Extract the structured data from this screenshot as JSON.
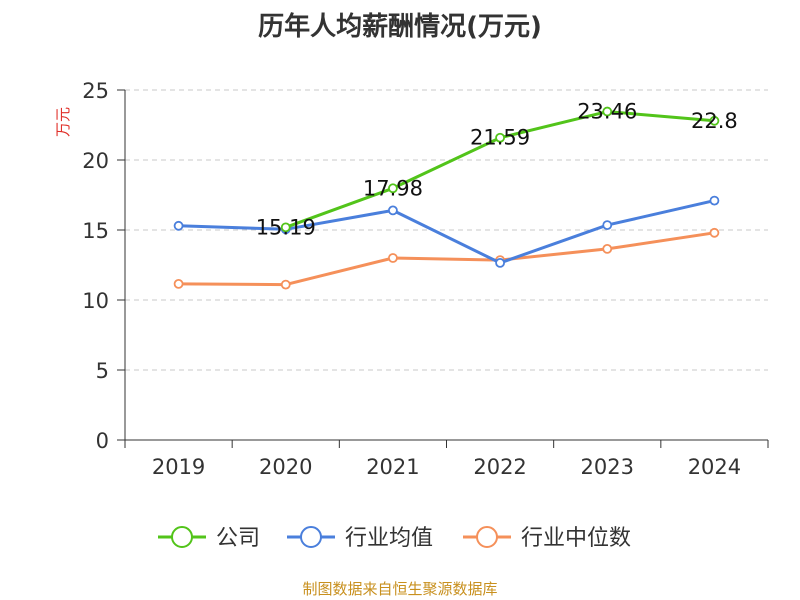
{
  "chart_data": {
    "type": "line",
    "title": "历年人均薪酬情况(万元)",
    "ylabel": "万元",
    "xlabel": "",
    "ylim": [
      0,
      25
    ],
    "yticks": [
      0,
      5,
      10,
      15,
      20,
      25
    ],
    "grid": true,
    "legend_position": "bottom",
    "categories": [
      "2019",
      "2020",
      "2021",
      "2022",
      "2023",
      "2024"
    ],
    "series": [
      {
        "name": "公司",
        "color": "#52c41a",
        "values": [
          null,
          15.19,
          17.98,
          21.59,
          23.46,
          22.8
        ],
        "labels": [
          null,
          "15.19",
          "17.98",
          "21.59",
          "23.46",
          "22.8"
        ]
      },
      {
        "name": "行业均值",
        "color": "#4a7fdc",
        "values": [
          15.3,
          15.05,
          16.4,
          12.65,
          15.35,
          17.1
        ]
      },
      {
        "name": "行业中位数",
        "color": "#f5905a",
        "values": [
          11.15,
          11.1,
          13.0,
          12.85,
          13.65,
          14.8
        ]
      }
    ]
  },
  "footer": {
    "source": "制图数据来自恒生聚源数据库"
  }
}
